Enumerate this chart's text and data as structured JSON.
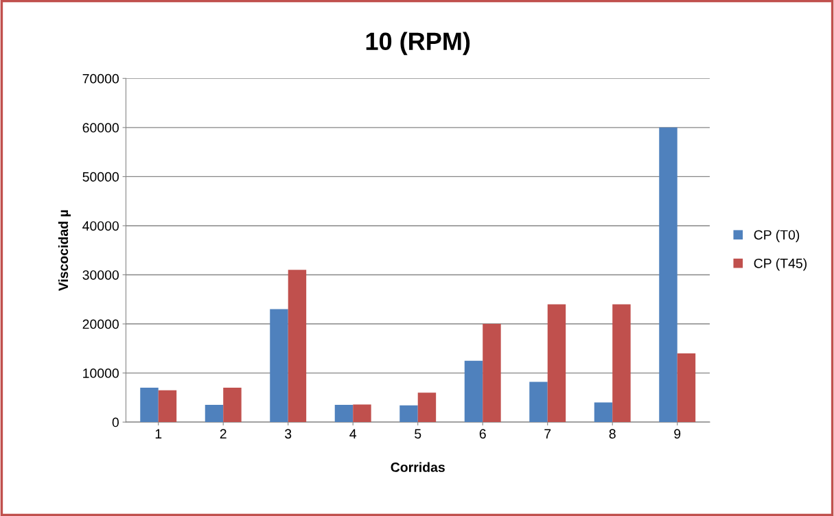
{
  "chart_data": {
    "type": "bar",
    "title": "10 (RPM)",
    "xlabel": "Corridas",
    "ylabel": "Viscocidad µ",
    "categories": [
      "1",
      "2",
      "3",
      "4",
      "5",
      "6",
      "7",
      "8",
      "9"
    ],
    "series": [
      {
        "name": "CP (T0)",
        "color": "#4f81bd",
        "values": [
          7000,
          3500,
          23000,
          3500,
          3400,
          12500,
          8200,
          4000,
          60000
        ]
      },
      {
        "name": "CP (T45)",
        "color": "#c0504d",
        "values": [
          6500,
          7000,
          31000,
          3600,
          6000,
          20000,
          24000,
          24000,
          14000
        ]
      }
    ],
    "ylim": [
      0,
      70000
    ],
    "yticks": [
      0,
      10000,
      20000,
      30000,
      40000,
      50000,
      60000,
      70000
    ],
    "grid": "y",
    "legend": "right"
  }
}
